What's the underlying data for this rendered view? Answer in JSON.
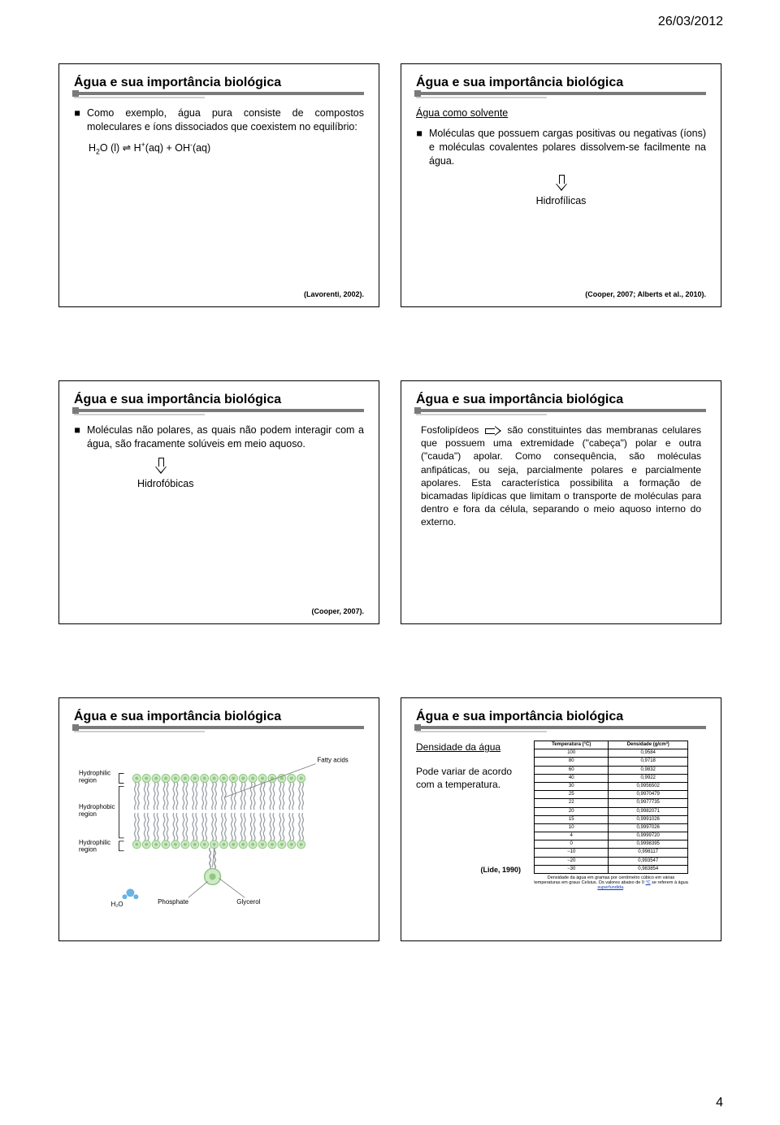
{
  "page": {
    "date": "26/03/2012",
    "number": "4"
  },
  "common": {
    "title": "Água e sua importância biológica",
    "bullet_marker": "■"
  },
  "slide1": {
    "bullet": "Como exemplo, água pura consiste de compostos moleculares e íons dissociados que coexistem no equilíbrio:",
    "equation_html": "H<sub>2</sub>O (l) ⇌ H<sup>+</sup>(aq)  +  OH<sup>-</sup>(aq)",
    "cite": "(Lavorenti, 2002)."
  },
  "slide2": {
    "subhead": "Água como solvente",
    "bullet": "Moléculas que possuem cargas positivas ou negativas (íons) e moléculas covalentes polares dissolvem-se facilmente na água.",
    "label": "Hidrofílicas",
    "cite": "(Cooper, 2007; Alberts et al., 2010)."
  },
  "slide3": {
    "bullet": "Moléculas não polares, as quais não podem interagir com a água, são fracamente solúveis em meio aquoso.",
    "label": "Hidrofóbicas",
    "cite": "(Cooper, 2007)."
  },
  "slide4": {
    "lead": "Fosfolipídeos",
    "text": "são constituintes das membranas celulares que possuem uma extremidade (\"cabeça\") polar e outra (\"cauda\") apolar. Como consequência, são moléculas anfipáticas, ou seja, parcialmente polares e parcialmente apolares. Esta característica possibilita a formação de bicamadas lipídicas que limitam o transporte de moléculas para dentro e fora da célula, separando o meio aquoso interno do externo."
  },
  "slide5": {
    "labels": {
      "hydrophilic": "Hydrophilic region",
      "hydrophobic": "Hydrophobic region",
      "fatty": "Fatty acids",
      "h2o": "H₂O",
      "phosphate": "Phosphate",
      "glycerol": "Glycerol"
    },
    "colors": {
      "head_outer": "#cfe9c8",
      "head_inner": "#8fc97f",
      "tail": "#9aa0a6",
      "lead": "#7a7a7a",
      "water": "#66b3e6"
    }
  },
  "slide6": {
    "dens_head": "Densidade da água",
    "dens_text": "Pode variar de acordo com a temperatura.",
    "cite": "(Lide, 1990)",
    "table": {
      "col1": "Temperatura (°C)",
      "col2": "Densidade (g/cm³)",
      "rows": [
        [
          "100",
          "0,9584"
        ],
        [
          "80",
          "0,9718"
        ],
        [
          "60",
          "0,9832"
        ],
        [
          "40",
          "0,9922"
        ],
        [
          "30",
          "0,9956502"
        ],
        [
          "25",
          "0,9970479"
        ],
        [
          "22",
          "0,9977735"
        ],
        [
          "20",
          "0,9982071"
        ],
        [
          "15",
          "0,9991026"
        ],
        [
          "10",
          "0,9997026"
        ],
        [
          "4",
          "0,9999720"
        ],
        [
          "0",
          "0,9998395"
        ],
        [
          "−10",
          "0,998117"
        ],
        [
          "−20",
          "0,993547"
        ],
        [
          "−30",
          "0,983854"
        ]
      ],
      "caption_html": "Densidade da água em gramas por centímetro cúbico em várias temperaturas em graus Celsius. Os valores abaixo de 0 <u>°C</u> se referem à água <u>superfundida</u>.",
      "link_color": "#0b3db3"
    }
  }
}
